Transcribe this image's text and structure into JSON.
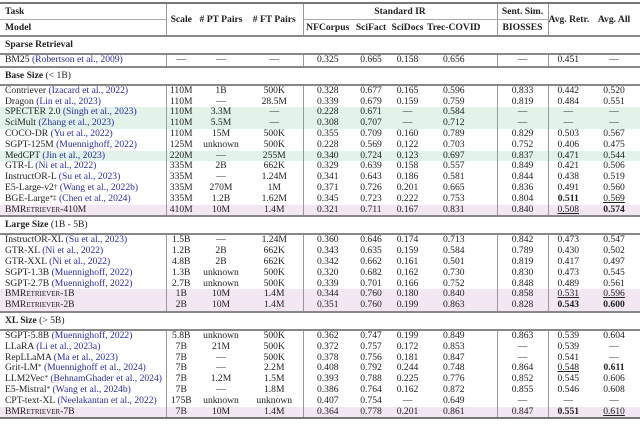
{
  "header": {
    "task": "Task",
    "model": "Model",
    "scale": "Scale",
    "pt_pairs": "# PT Pairs",
    "ft_pairs": "# FT Pairs",
    "standard_ir": "Standard IR",
    "sent_sim": "Sent. Sim.",
    "nfcorpus": "NFCorpus",
    "scifact": "SciFact",
    "scidocs": "SciDocs",
    "trec_covid": "Trec-COVID",
    "biosses": "BIOSSES",
    "avg_retr": "Avg. Retr.",
    "avg_all": "Avg. All"
  },
  "colors": {
    "citation": "#2b2ba8",
    "highlight_green": "#e2f3ea",
    "highlight_purple": "#f3e7f4"
  },
  "sections": [
    {
      "title": "Sparse Retrieval",
      "suffix": "",
      "rows": [
        {
          "model": "BM25",
          "sup": "",
          "cite": "(Robertson et al., 2009)",
          "scale": "—",
          "pt": "—",
          "ft": "—",
          "nf": "0.325",
          "sf": "0.665",
          "sd": "0.158",
          "tc": "0.656",
          "bio": "—",
          "ar": "0.451",
          "aa": "—"
        }
      ]
    },
    {
      "title": "Base Size",
      "suffix": "(< 1B)",
      "rows": [
        {
          "model": "Contriever",
          "sup": "",
          "cite": "(Izacard et al., 2022)",
          "scale": "110M",
          "pt": "1B",
          "ft": "500K",
          "nf": "0.328",
          "sf": "0.677",
          "sd": "0.165",
          "tc": "0.596",
          "bio": "0.833",
          "ar": "0.442",
          "aa": "0.520"
        },
        {
          "model": "Dragon",
          "sup": "",
          "cite": "(Lin et al., 2023)",
          "scale": "110M",
          "pt": "—",
          "ft": "28.5M",
          "nf": "0.339",
          "sf": "0.679",
          "sd": "0.159",
          "tc": "0.759",
          "bio": "0.819",
          "ar": "0.484",
          "aa": "0.551"
        },
        {
          "model": "SPECTER 2.0",
          "sup": "",
          "cite": "(Singh et al., 2023)",
          "scale": "110M",
          "pt": "3.3M",
          "ft": "—",
          "nf": "0.228",
          "sf": "0.671",
          "sd": "—",
          "tc": "0.584",
          "bio": "—",
          "ar": "—",
          "aa": "—",
          "highlight": "green"
        },
        {
          "model": "SciMult",
          "sup": "",
          "cite": "(Zhang et al., 2023)",
          "scale": "110M",
          "pt": "5.5M",
          "ft": "—",
          "nf": "0.308",
          "sf": "0.707",
          "sd": "—",
          "tc": "0.712",
          "bio": "—",
          "ar": "—",
          "aa": "—",
          "highlight": "green"
        },
        {
          "model": "COCO-DR",
          "sup": "",
          "cite": "(Yu et al., 2022)",
          "scale": "110M",
          "pt": "15M",
          "ft": "500K",
          "nf": "0.355",
          "sf": "0.709",
          "sd": "0.160",
          "tc": "0.789",
          "bio": "0.829",
          "ar": "0.503",
          "aa": "0.567"
        },
        {
          "model": "SGPT-125M",
          "sup": "",
          "cite": "(Muennighoff, 2022)",
          "scale": "125M",
          "pt": "unknown",
          "ft": "500K",
          "nf": "0.228",
          "sf": "0.569",
          "sd": "0.122",
          "tc": "0.703",
          "bio": "0.752",
          "ar": "0.406",
          "aa": "0.475"
        },
        {
          "model": "MedCPT",
          "sup": "",
          "cite": "(Jin et al., 2023)",
          "scale": "220M",
          "pt": "—",
          "ft": "255M",
          "nf": "0.340",
          "sf": "0.724",
          "sd": "0.123",
          "tc": "0.697",
          "bio": "0.837",
          "ar": "0.471",
          "aa": "0.544",
          "highlight": "green"
        },
        {
          "model": "GTR-L",
          "sup": "",
          "cite": "(Ni et al., 2022)",
          "scale": "335M",
          "pt": "2B",
          "ft": "662K",
          "nf": "0.329",
          "sf": "0.639",
          "sd": "0.158",
          "tc": "0.557",
          "bio": "0.849",
          "ar": "0.421",
          "aa": "0.506"
        },
        {
          "model": "InstructOR-L",
          "sup": "",
          "cite": "(Su et al., 2023)",
          "scale": "335M",
          "pt": "—",
          "ft": "1.24M",
          "nf": "0.341",
          "sf": "0.643",
          "sd": "0.186",
          "tc": "0.581",
          "bio": "0.844",
          "ar": "0.438",
          "aa": "0.519"
        },
        {
          "model": "E5-Large-v2",
          "sup": "†",
          "cite": "(Wang et al., 2022b)",
          "scale": "335M",
          "pt": "270M",
          "ft": "1M",
          "nf": "0.371",
          "sf": "0.726",
          "sd": "0.201",
          "tc": "0.665",
          "bio": "0.836",
          "ar": "0.491",
          "aa": "0.560"
        },
        {
          "model": "BGE-Large",
          "sup": "*‡",
          "cite": "(Chen et al., 2024)",
          "scale": "335M",
          "pt": "1.2B",
          "ft": "1.62M",
          "nf": "0.345",
          "sf": "0.723",
          "sd": "0.222",
          "tc": "0.753",
          "bio": "0.804",
          "ar": "0.511",
          "aa": "0.569",
          "bold": [
            "ar"
          ],
          "underline": [
            "aa"
          ]
        },
        {
          "model": "BMRetriever-410M",
          "sup": "",
          "cite": "",
          "scale": "410M",
          "pt": "10M",
          "ft": "1.4M",
          "nf": "0.321",
          "sf": "0.711",
          "sd": "0.167",
          "tc": "0.831",
          "bio": "0.840",
          "ar": "0.508",
          "aa": "0.574",
          "highlight": "purple",
          "ours": true,
          "underline": [
            "ar"
          ],
          "bold": [
            "aa"
          ]
        }
      ]
    },
    {
      "title": "Large Size",
      "suffix": "(1B - 5B)",
      "rows": [
        {
          "model": "InstructOR-XL",
          "sup": "",
          "cite": "(Su et al., 2023)",
          "scale": "1.5B",
          "pt": "—",
          "ft": "1.24M",
          "nf": "0.360",
          "sf": "0.646",
          "sd": "0.174",
          "tc": "0.713",
          "bio": "0.842",
          "ar": "0.473",
          "aa": "0.547"
        },
        {
          "model": "GTR-XL",
          "sup": "",
          "cite": "(Ni et al., 2022)",
          "scale": "1.2B",
          "pt": "2B",
          "ft": "662K",
          "nf": "0.343",
          "sf": "0.635",
          "sd": "0.159",
          "tc": "0.584",
          "bio": "0.789",
          "ar": "0.430",
          "aa": "0.502"
        },
        {
          "model": "GTR-XXL",
          "sup": "",
          "cite": "(Ni et al., 2022)",
          "scale": "4.8B",
          "pt": "2B",
          "ft": "662K",
          "nf": "0.342",
          "sf": "0.662",
          "sd": "0.161",
          "tc": "0.501",
          "bio": "0.819",
          "ar": "0.417",
          "aa": "0.497"
        },
        {
          "model": "SGPT-1.3B",
          "sup": "",
          "cite": "(Muennighoff, 2022)",
          "scale": "1.3B",
          "pt": "unknown",
          "ft": "500K",
          "nf": "0.320",
          "sf": "0.682",
          "sd": "0.162",
          "tc": "0.730",
          "bio": "0.830",
          "ar": "0.473",
          "aa": "0.545"
        },
        {
          "model": "SGPT-2.7B",
          "sup": "",
          "cite": "(Muennighoff, 2022)",
          "scale": "2.7B",
          "pt": "unknown",
          "ft": "500K",
          "nf": "0.339",
          "sf": "0.701",
          "sd": "0.166",
          "tc": "0.752",
          "bio": "0.848",
          "ar": "0.489",
          "aa": "0.561"
        },
        {
          "model": "BMRetriever-1B",
          "sup": "",
          "cite": "",
          "scale": "1B",
          "pt": "10M",
          "ft": "1.4M",
          "nf": "0.344",
          "sf": "0.760",
          "sd": "0.180",
          "tc": "0.840",
          "bio": "0.858",
          "ar": "0.531",
          "aa": "0.596",
          "highlight": "purple",
          "ours": true,
          "underline": [
            "ar",
            "aa"
          ]
        },
        {
          "model": "BMRetriever-2B",
          "sup": "",
          "cite": "",
          "scale": "2B",
          "pt": "10M",
          "ft": "1.4M",
          "nf": "0.351",
          "sf": "0.760",
          "sd": "0.199",
          "tc": "0.863",
          "bio": "0.828",
          "ar": "0.543",
          "aa": "0.600",
          "highlight": "purple",
          "ours": true,
          "bold": [
            "ar",
            "aa"
          ]
        }
      ]
    },
    {
      "title": "XL Size",
      "suffix": "(> 5B)",
      "rows": [
        {
          "model": "SGPT-5.8B",
          "sup": "",
          "cite": "(Muennighoff, 2022)",
          "scale": "5.8B",
          "pt": "unknown",
          "ft": "500K",
          "nf": "0.362",
          "sf": "0.747",
          "sd": "0.199",
          "tc": "0.849",
          "bio": "0.863",
          "ar": "0.539",
          "aa": "0.604"
        },
        {
          "model": "LLaRA",
          "sup": "",
          "cite": "(Li et al., 2023a)",
          "scale": "7B",
          "pt": "21M",
          "ft": "500K",
          "nf": "0.372",
          "sf": "0.757",
          "sd": "0.172",
          "tc": "0.853",
          "bio": "—",
          "ar": "0.539",
          "aa": "—"
        },
        {
          "model": "RepLLaMA",
          "sup": "",
          "cite": "(Ma et al., 2023)",
          "scale": "7B",
          "pt": "—",
          "ft": "500K",
          "nf": "0.378",
          "sf": "0.756",
          "sd": "0.181",
          "tc": "0.847",
          "bio": "—",
          "ar": "0.541",
          "aa": "—"
        },
        {
          "model": "Grit-LM",
          "sup": "*",
          "cite": "(Muennighoff et al., 2024)",
          "scale": "7B",
          "pt": "—",
          "ft": "2.2M",
          "nf": "0.408",
          "sf": "0.792",
          "sd": "0.244",
          "tc": "0.748",
          "bio": "0.864",
          "ar": "0.548",
          "aa": "0.611",
          "underline": [
            "ar"
          ],
          "bold": [
            "aa"
          ]
        },
        {
          "model": "LLM2Vec",
          "sup": "*",
          "cite": "(BehnamGhader et al., 2024)",
          "scale": "7B",
          "pt": "1.2M",
          "ft": "1.5M",
          "nf": "0.393",
          "sf": "0.788",
          "sd": "0.225",
          "tc": "0.776",
          "bio": "0.852",
          "ar": "0.545",
          "aa": "0.606"
        },
        {
          "model": "E5-Mistral",
          "sup": "*",
          "cite": "(Wang et al., 2024b)",
          "scale": "7B",
          "pt": "—",
          "ft": "1.8M",
          "nf": "0.386",
          "sf": "0.764",
          "sd": "0.162",
          "tc": "0.872",
          "bio": "0.855",
          "ar": "0.546",
          "aa": "0.608"
        },
        {
          "model": "CPT-text-XL",
          "sup": "",
          "cite": "(Neelakantan et al., 2022)",
          "scale": "175B",
          "pt": "unknown",
          "ft": "unknown",
          "nf": "0.407",
          "sf": "0.754",
          "sd": "—",
          "tc": "0.649",
          "bio": "—",
          "ar": "—",
          "aa": "—"
        },
        {
          "model": "BMRetriever-7B",
          "sup": "",
          "cite": "",
          "scale": "7B",
          "pt": "10M",
          "ft": "1.4M",
          "nf": "0.364",
          "sf": "0.778",
          "sd": "0.201",
          "tc": "0.861",
          "bio": "0.847",
          "ar": "0.551",
          "aa": "0.610",
          "highlight": "purple",
          "ours": true,
          "bold": [
            "ar"
          ],
          "underline": [
            "aa"
          ]
        }
      ]
    }
  ]
}
